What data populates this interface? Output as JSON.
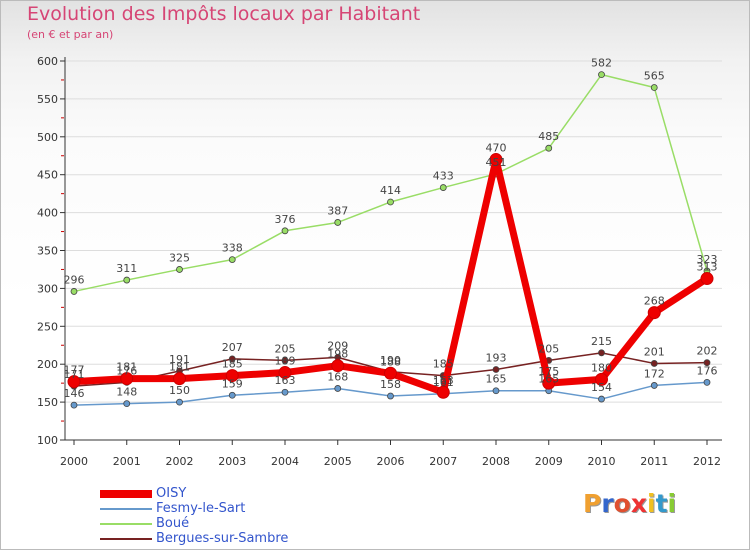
{
  "title": "Evolution des Impôts locaux par Habitant",
  "subtitle": "(en € et par an)",
  "logo_text": "Proxiti",
  "colors": {
    "title": "#d64575",
    "legend_text": "#3355cc",
    "axis": "#333333"
  },
  "chart_data": {
    "type": "line",
    "title": "Evolution des Impôts locaux par Habitant",
    "subtitle": "(en € et par an)",
    "xlabel": "",
    "ylabel": "",
    "ylim": [
      100,
      600
    ],
    "yticks": [
      100,
      150,
      200,
      250,
      300,
      350,
      400,
      450,
      500,
      550,
      600
    ],
    "categories": [
      "2000",
      "2001",
      "2002",
      "2003",
      "2004",
      "2005",
      "2006",
      "2007",
      "2008",
      "2009",
      "2010",
      "2011",
      "2012"
    ],
    "legend_position": "bottom-left",
    "series": [
      {
        "name": "OISY",
        "color": "#ee0000",
        "values": [
          177,
          181,
          181,
          185,
          189,
          198,
          188,
          163,
          470,
          175,
          180,
          268,
          313
        ]
      },
      {
        "name": "Fesmy-le-Sart",
        "color": "#6699cc",
        "values": [
          146,
          148,
          150,
          159,
          163,
          168,
          158,
          161,
          165,
          165,
          154,
          172,
          176
        ]
      },
      {
        "name": "Boué",
        "color": "#99dd66",
        "values": [
          296,
          311,
          325,
          338,
          376,
          387,
          414,
          433,
          451,
          485,
          582,
          565,
          323
        ]
      },
      {
        "name": "Bergues-sur-Sambre",
        "color": "#772222",
        "values": [
          171,
          176,
          191,
          207,
          205,
          209,
          190,
          185,
          193,
          205,
          215,
          201,
          202
        ]
      }
    ]
  }
}
